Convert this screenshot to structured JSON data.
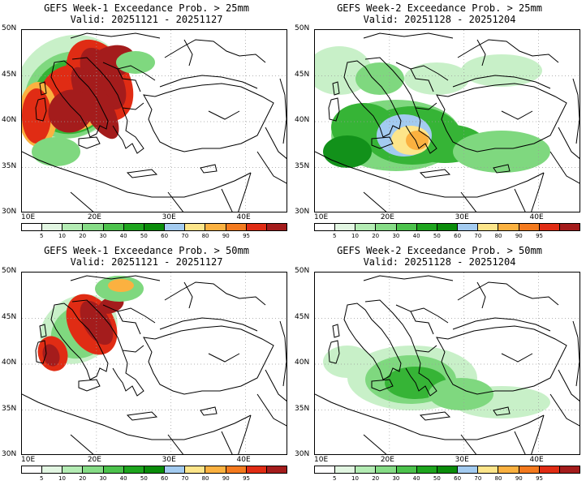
{
  "panels": [
    {
      "id": "p1",
      "title": "GEFS Week-1 Exceedance Prob. > 25mm",
      "valid": "Valid: 20251121 - 20251127"
    },
    {
      "id": "p2",
      "title": "GEFS Week-2 Exceedance Prob. > 25mm",
      "valid": "Valid: 20251128 - 20251204"
    },
    {
      "id": "p3",
      "title": "GEFS Week-1 Exceedance Prob. > 50mm",
      "valid": "Valid: 20251121 - 20251127"
    },
    {
      "id": "p4",
      "title": "GEFS Week-2 Exceedance Prob. > 50mm",
      "valid": "Valid: 20251128 - 20251204"
    }
  ],
  "axes": {
    "y_labels": [
      "50N",
      "45N",
      "40N",
      "35N",
      "30N"
    ],
    "x_labels": [
      "10E",
      "20E",
      "30E",
      "40E"
    ]
  },
  "colorbar": {
    "labels": [
      "5",
      "10",
      "20",
      "30",
      "40",
      "50",
      "60",
      "70",
      "80",
      "90",
      "95"
    ],
    "colors": [
      "#ffffff",
      "#e2f6e2",
      "#b4ecb4",
      "#86dc86",
      "#4cc24c",
      "#1ea51e",
      "#0a8c0a",
      "#a3cbf0",
      "#fde58a",
      "#fbb140",
      "#f47a1e",
      "#e02c14",
      "#a41c1c"
    ]
  },
  "palette": {
    "light_green": "#c8f0c8",
    "mid_green": "#7fd87f",
    "green": "#36b436",
    "dark_green": "#12911a",
    "blue": "#a3cbf0",
    "yellow": "#fde58a",
    "orange": "#fbb140",
    "red_orange": "#f47a1e",
    "red": "#e02c14",
    "dark_red": "#a41c1c",
    "coast": "#000000",
    "grid": "#9a9a9a"
  }
}
